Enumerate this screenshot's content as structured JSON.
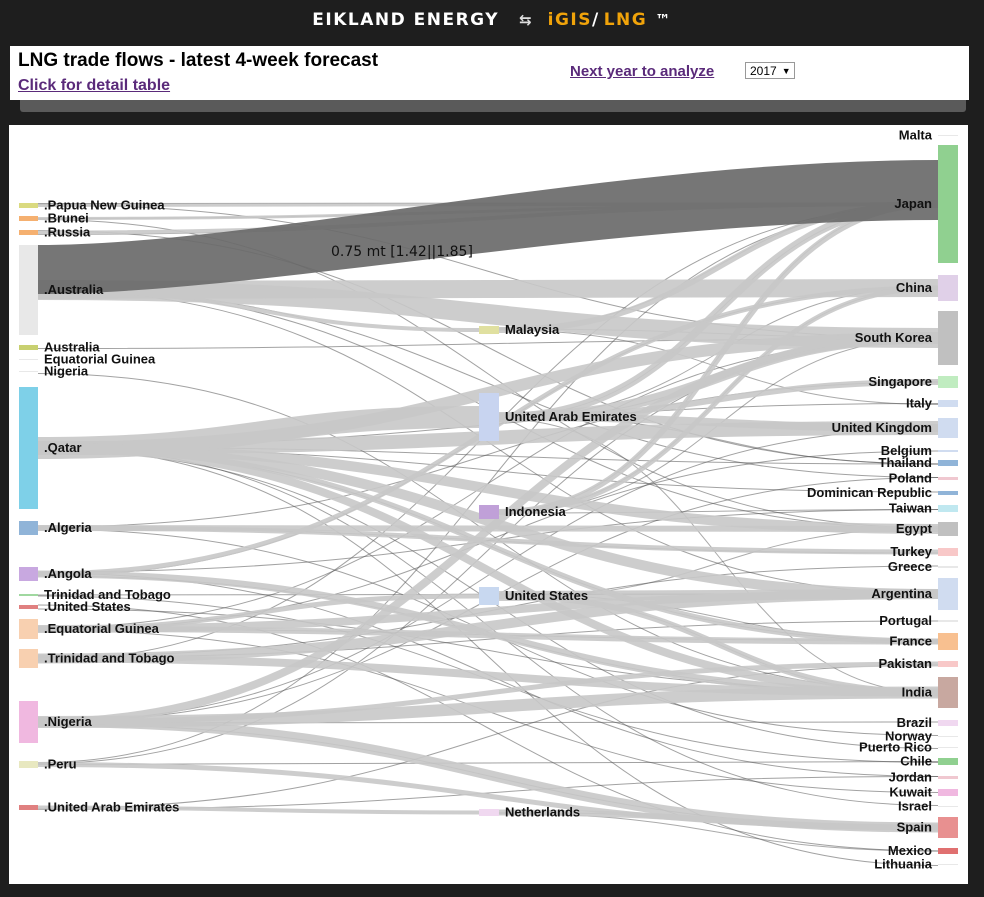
{
  "app": {
    "brand": "EIKLAND ENERGY",
    "arrows": "⇆",
    "product_igis": "iGIS",
    "slash": "/",
    "product_lng": "LNG",
    "tm": "™"
  },
  "header": {
    "title": "LNG trade flows - latest 4-week forecast",
    "detail_link": "Click for detail table",
    "next_year_label": "Next year to analyze",
    "year_value": "2017"
  },
  "tooltip_text": "0.75 mt [1.42||1.85]",
  "chart_data": {
    "type": "sankey",
    "sources": [
      {
        "name": ".Papua New Guinea",
        "color": "#dada80"
      },
      {
        "name": ".Brunei",
        "color": "#f5b070"
      },
      {
        "name": ".Russia",
        "color": "#f5b070"
      },
      {
        "name": ".Australia",
        "color": "#e8e8e8"
      },
      {
        "name": "Australia",
        "color": "#c8d070"
      },
      {
        "name": "Equatorial Guinea",
        "color": "#e8e8e8"
      },
      {
        "name": "Nigeria",
        "color": "#e8e8e8"
      },
      {
        "name": ".Qatar",
        "color": "#7ed0e8"
      },
      {
        "name": ".Algeria",
        "color": "#90b4d8"
      },
      {
        "name": ".Angola",
        "color": "#c8a8e0"
      },
      {
        "name": "Trinidad and Tobago",
        "color": "#a0d8a0"
      },
      {
        "name": ".United States",
        "color": "#e08080"
      },
      {
        "name": ".Equatorial Guinea",
        "color": "#f8d0b0"
      },
      {
        "name": ".Trinidad and Tobago",
        "color": "#f8d0b0"
      },
      {
        "name": ".Nigeria",
        "color": "#f0b8e0"
      },
      {
        "name": ".Peru",
        "color": "#e8e8c0"
      },
      {
        "name": ".United Arab Emirates",
        "color": "#e08080"
      }
    ],
    "intermediates": [
      {
        "name": "Malaysia",
        "color": "#e0e0a0"
      },
      {
        "name": "United Arab Emirates",
        "color": "#c8d4f0"
      },
      {
        "name": "Indonesia",
        "color": "#c0a0d8"
      },
      {
        "name": "United States",
        "color": "#c8d8f0"
      },
      {
        "name": "Netherlands",
        "color": "#f0d8f0"
      }
    ],
    "destinations": [
      {
        "name": "Malta",
        "color": "#e8e8e8"
      },
      {
        "name": "Japan",
        "color": "#90d090"
      },
      {
        "name": "China",
        "color": "#e0d0e8"
      },
      {
        "name": "South Korea",
        "color": "#c0c0c0"
      },
      {
        "name": "Singapore",
        "color": "#c0ecc0"
      },
      {
        "name": "Italy",
        "color": "#d0dcf0"
      },
      {
        "name": "United Kingdom",
        "color": "#d0dcf0"
      },
      {
        "name": "Belgium",
        "color": "#d0dcf0"
      },
      {
        "name": "Thailand",
        "color": "#90b4d8"
      },
      {
        "name": "Poland",
        "color": "#f0c8d0"
      },
      {
        "name": "Dominican Republic",
        "color": "#90b4d8"
      },
      {
        "name": "Taiwan",
        "color": "#c0e8f0"
      },
      {
        "name": "Egypt",
        "color": "#c0c0c0"
      },
      {
        "name": "Turkey",
        "color": "#f8c8c8"
      },
      {
        "name": "Greece",
        "color": "#e8e8e8"
      },
      {
        "name": "Argentina",
        "color": "#d0dcf0"
      },
      {
        "name": "Portugal",
        "color": "#e8e8e8"
      },
      {
        "name": "France",
        "color": "#f8c090"
      },
      {
        "name": "Pakistan",
        "color": "#f8c8c8"
      },
      {
        "name": "India",
        "color": "#c8a8a0"
      },
      {
        "name": "Brazil",
        "color": "#f0d8f0"
      },
      {
        "name": "Norway",
        "color": "#e8e8e8"
      },
      {
        "name": "Puerto Rico",
        "color": "#e8e8e8"
      },
      {
        "name": "Chile",
        "color": "#90d090"
      },
      {
        "name": "Jordan",
        "color": "#f0c8d0"
      },
      {
        "name": "Kuwait",
        "color": "#f0b8e0"
      },
      {
        "name": "Israel",
        "color": "#e8e8e8"
      },
      {
        "name": "Spain",
        "color": "#e89090"
      },
      {
        "name": "Mexico",
        "color": "#e07070"
      },
      {
        "name": "Lithuania",
        "color": "#e8e8e8"
      }
    ],
    "highlighted_flow": {
      "from": ".Australia",
      "to": "Japan",
      "label": "0.75 mt [1.42||1.85]"
    }
  }
}
